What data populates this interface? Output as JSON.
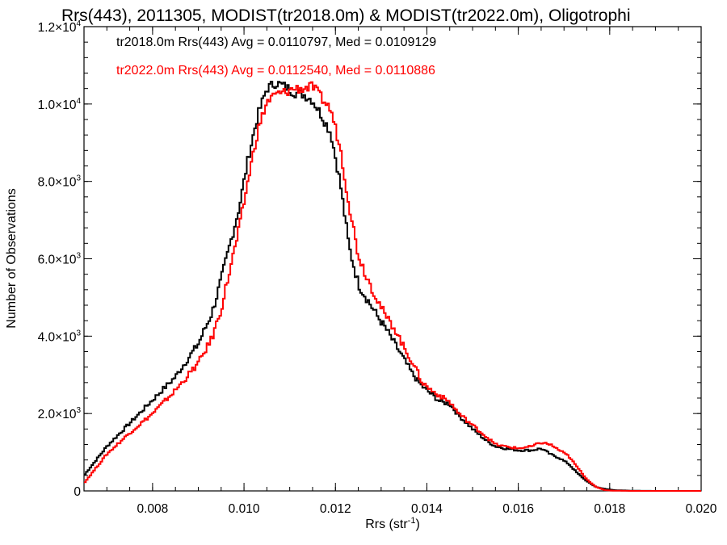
{
  "chart_data": {
    "type": "line",
    "title": "Rrs(443), 2011305, MODIST(tr2018.0m) & MODIST(tr2022.0m), Oligotrophi",
    "xlabel": "Rrs (str",
    "xlabel_sup": "-1",
    "xlabel_end": ")",
    "ylabel": "Number of Observations",
    "xlim": [
      0.0065,
      0.02
    ],
    "ylim": [
      0,
      12000
    ],
    "x_tick_values": [
      0.008,
      0.01,
      0.012,
      0.014,
      0.016,
      0.018,
      0.02
    ],
    "x_tick_labels": [
      "0.008",
      "0.010",
      "0.012",
      "0.014",
      "0.016",
      "0.018",
      "0.020"
    ],
    "y_ticks": [
      {
        "value": 0,
        "mant": "0",
        "exp": ""
      },
      {
        "value": 2000,
        "mant": "2.0×10",
        "exp": "3"
      },
      {
        "value": 4000,
        "mant": "4.0×10",
        "exp": "3"
      },
      {
        "value": 6000,
        "mant": "6.0×10",
        "exp": "3"
      },
      {
        "value": 8000,
        "mant": "8.0×10",
        "exp": "3"
      },
      {
        "value": 10000,
        "mant": "1.0×10",
        "exp": "4"
      },
      {
        "value": 12000,
        "mant": "1.2×10",
        "exp": "4"
      }
    ],
    "grid": false,
    "legend_position": "top-left",
    "series": [
      {
        "name": "tr2018.0m Rrs(443) Avg = 0.0110797, Med = 0.0109129",
        "color": "#000000",
        "x": [
          0.0065,
          0.007,
          0.0075,
          0.008,
          0.0085,
          0.009,
          0.0093,
          0.0095,
          0.0097,
          0.0099,
          0.0101,
          0.0103,
          0.0105,
          0.0107,
          0.0109,
          0.0111,
          0.0113,
          0.0115,
          0.0117,
          0.0119,
          0.0121,
          0.0123,
          0.0125,
          0.0127,
          0.0129,
          0.0131,
          0.0133,
          0.0135,
          0.0137,
          0.0139,
          0.0141,
          0.0143,
          0.0145,
          0.0147,
          0.015,
          0.0153,
          0.0155,
          0.0157,
          0.016,
          0.0163,
          0.0165,
          0.0167,
          0.0169,
          0.0171,
          0.0173,
          0.0175,
          0.0177,
          0.0179,
          0.0181,
          0.0185,
          0.019,
          0.02
        ],
        "y": [
          400,
          1150,
          1750,
          2350,
          2950,
          3800,
          4600,
          5450,
          6400,
          7350,
          8650,
          9700,
          10400,
          10550,
          10450,
          10300,
          10250,
          10100,
          9700,
          9250,
          8000,
          6300,
          5350,
          4950,
          4550,
          4200,
          3800,
          3400,
          3000,
          2700,
          2500,
          2300,
          2250,
          1950,
          1600,
          1300,
          1150,
          1100,
          1050,
          1050,
          1100,
          950,
          850,
          700,
          450,
          250,
          100,
          50,
          20,
          5,
          0,
          0
        ]
      },
      {
        "name": "tr2022.0m Rrs(443) Avg = 0.0112540, Med = 0.0110886",
        "color": "#ff0000",
        "x": [
          0.0065,
          0.007,
          0.0075,
          0.008,
          0.0085,
          0.009,
          0.0093,
          0.0095,
          0.0097,
          0.0099,
          0.0101,
          0.0103,
          0.0105,
          0.0107,
          0.0109,
          0.0111,
          0.0113,
          0.0115,
          0.0117,
          0.0119,
          0.0121,
          0.0123,
          0.0125,
          0.0127,
          0.0129,
          0.0131,
          0.0133,
          0.0135,
          0.0137,
          0.0139,
          0.0141,
          0.0143,
          0.0145,
          0.0147,
          0.015,
          0.0153,
          0.0155,
          0.0157,
          0.016,
          0.0163,
          0.0165,
          0.0167,
          0.0169,
          0.0171,
          0.0173,
          0.0175,
          0.0177,
          0.0179,
          0.0181,
          0.0185,
          0.019,
          0.02
        ],
        "y": [
          200,
          950,
          1500,
          2000,
          2600,
          3300,
          3950,
          4700,
          5750,
          6800,
          8100,
          9300,
          10050,
          10250,
          10300,
          10400,
          10400,
          10450,
          10150,
          9850,
          8900,
          7400,
          6100,
          5500,
          5000,
          4500,
          4200,
          3700,
          3300,
          2800,
          2600,
          2450,
          2300,
          2000,
          1700,
          1400,
          1200,
          1150,
          1100,
          1150,
          1250,
          1200,
          1050,
          900,
          600,
          300,
          100,
          20,
          5,
          0,
          0,
          0
        ]
      }
    ]
  }
}
